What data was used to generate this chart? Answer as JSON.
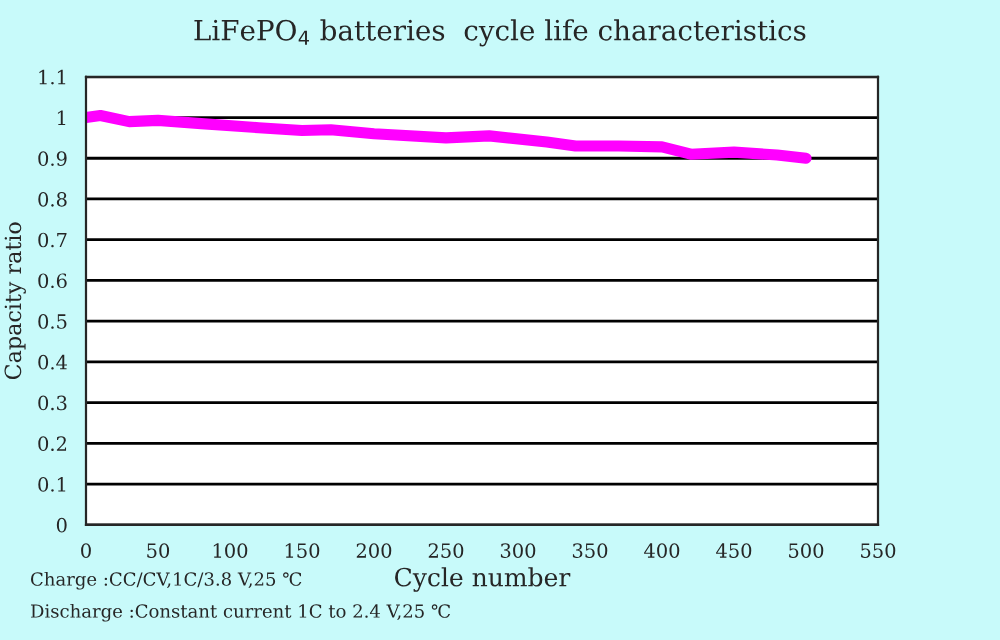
{
  "chart_data": {
    "type": "line",
    "title": "LiFePO$_{4}$ batteries  cycle life characteristics",
    "xlabel": "Cycle number",
    "ylabel": "Capacity ratio",
    "x": [
      0,
      10,
      30,
      50,
      80,
      120,
      150,
      170,
      200,
      250,
      280,
      320,
      340,
      370,
      400,
      420,
      450,
      480,
      500
    ],
    "series": [
      {
        "color": "#ff00ff",
        "values": [
          1.0,
          1.005,
          0.99,
          0.993,
          0.985,
          0.975,
          0.968,
          0.97,
          0.96,
          0.95,
          0.955,
          0.94,
          0.93,
          0.93,
          0.928,
          0.91,
          0.915,
          0.908,
          0.9
        ]
      }
    ],
    "xlim": [
      0,
      550
    ],
    "xticks": [
      0,
      50,
      100,
      150,
      200,
      250,
      300,
      350,
      400,
      450,
      500,
      550
    ],
    "ylim": [
      0,
      1.1
    ],
    "yticks": [
      0,
      0.1,
      0.2,
      0.3,
      0.4,
      0.5,
      0.6,
      0.7,
      0.8,
      0.9,
      1,
      1.1
    ],
    "grid": "y",
    "legend": false,
    "annotations": [
      "Charge :CC/CV,1C/3.8 V,25 ℃",
      "Discharge :Constant current 1C to 2.4 V,25 ℃"
    ]
  }
}
